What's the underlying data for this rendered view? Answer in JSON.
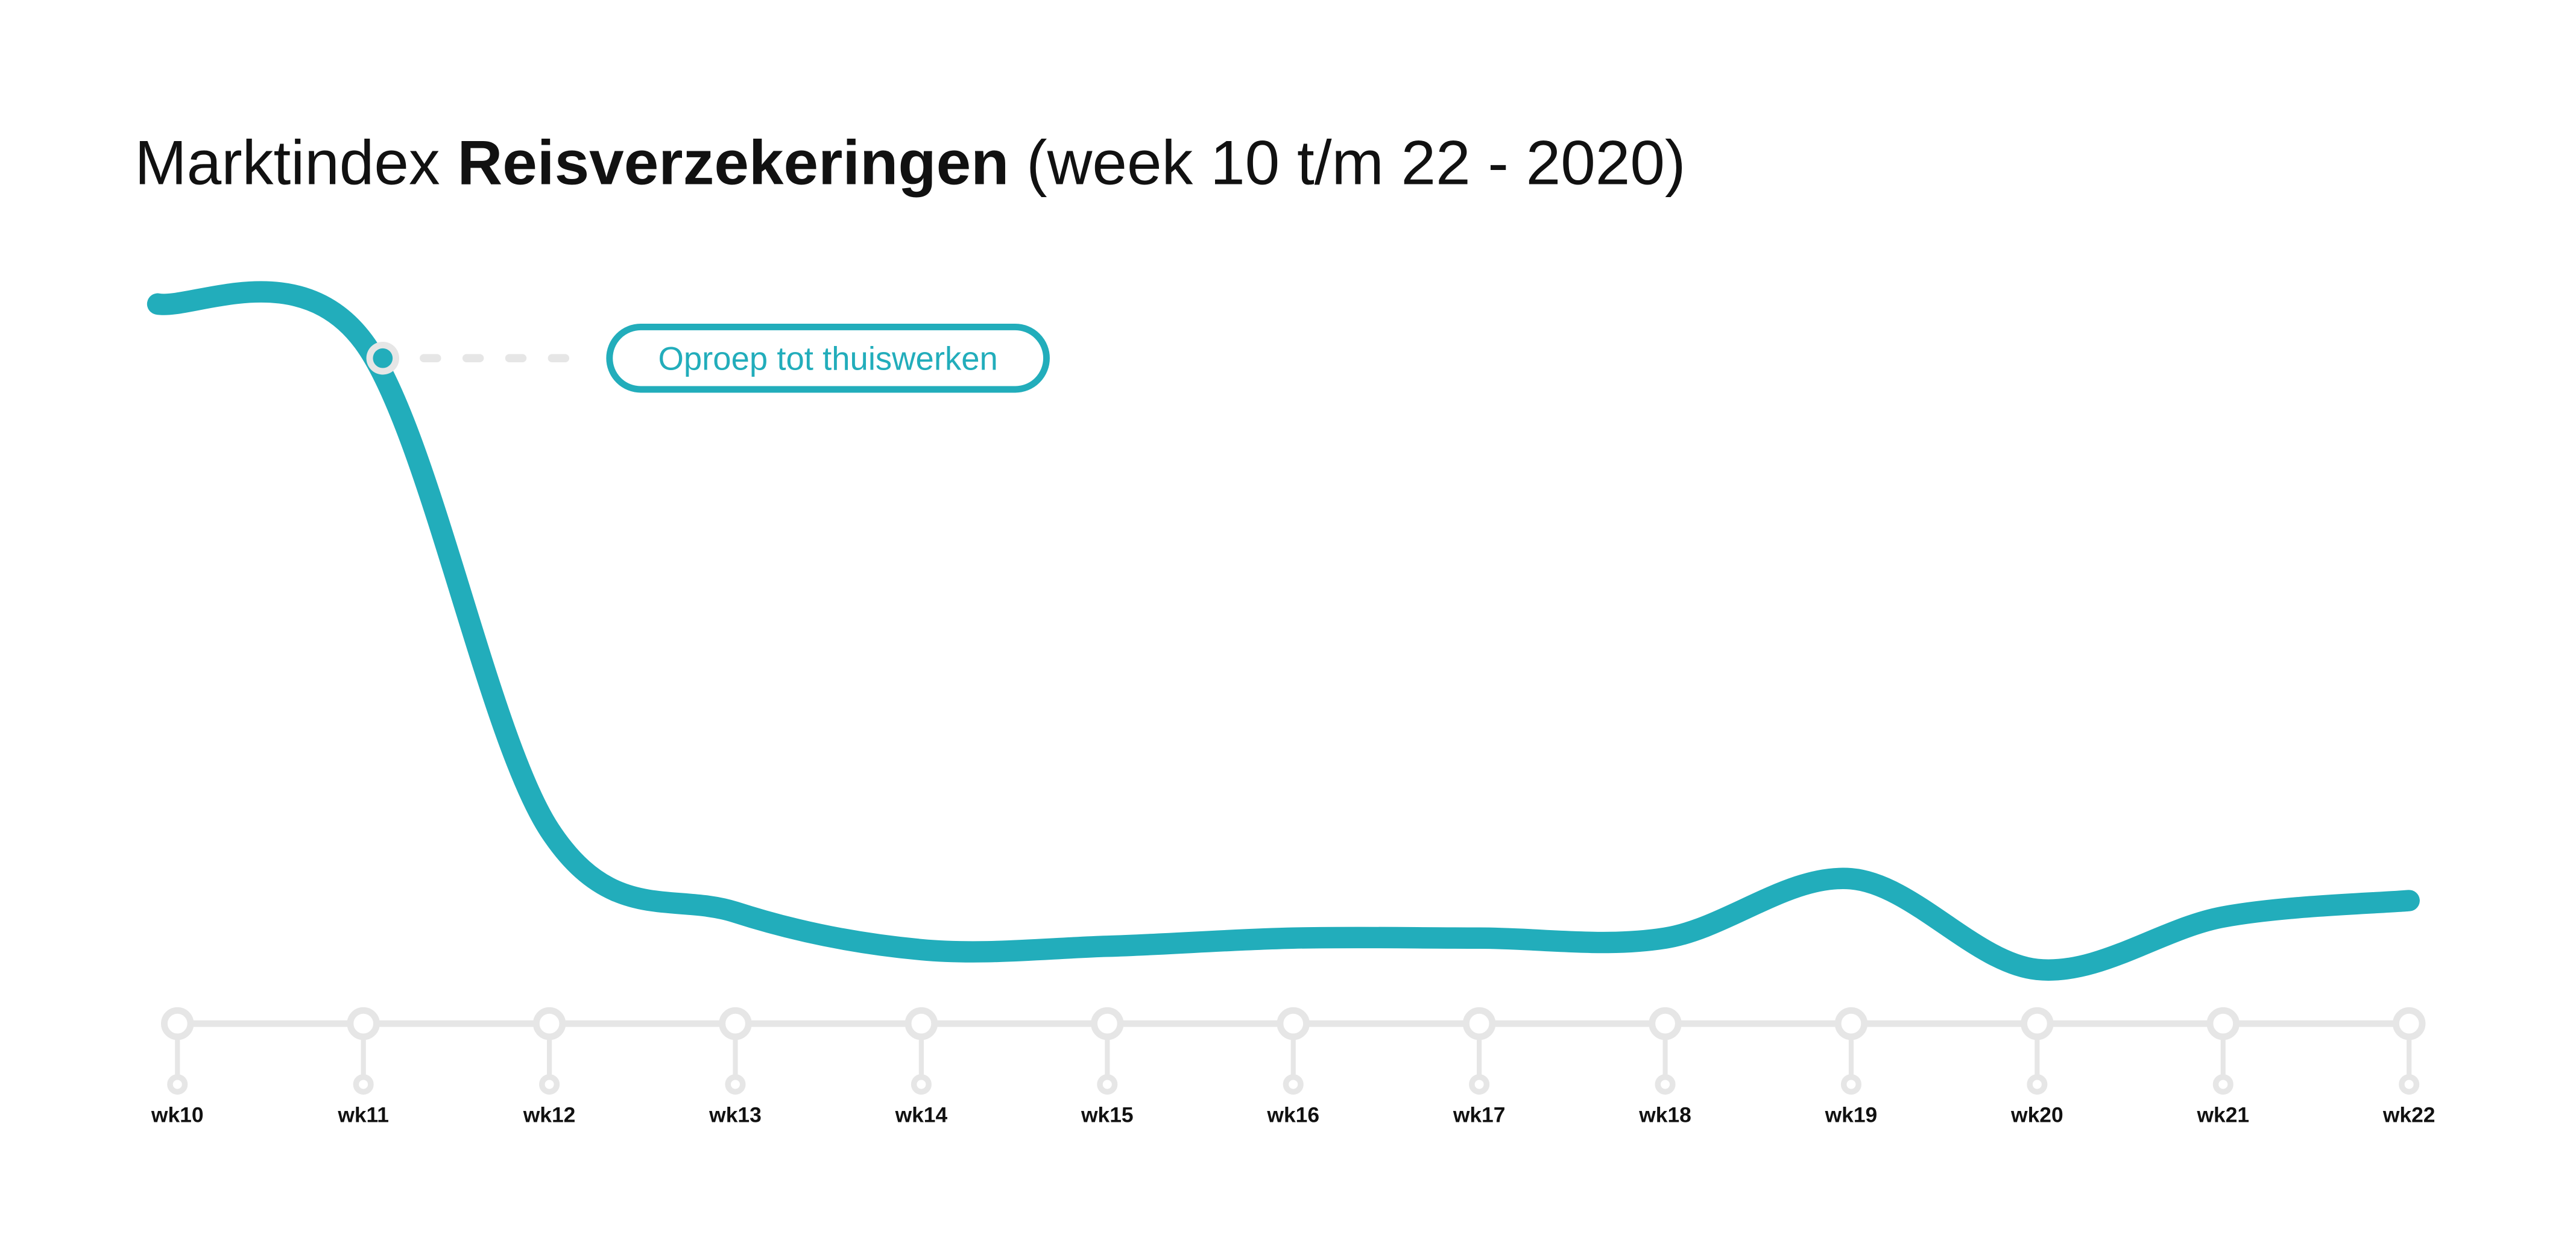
{
  "chart_data": {
    "type": "line",
    "title": {
      "prefix": "Marktindex ",
      "bold": "Reisverzekeringen",
      "suffix": " (week 10 t/m 22 - 2020)"
    },
    "xlabel": "",
    "ylabel": "",
    "categories": [
      "wk10",
      "wk11",
      "wk12",
      "wk13",
      "wk14",
      "wk15",
      "wk16",
      "wk17",
      "wk18",
      "wk19",
      "wk20",
      "wk21",
      "wk22"
    ],
    "series": [
      {
        "name": "Marktindex Reisverzekeringen",
        "values": [
          100,
          94.5,
          22.9,
          10.8,
          5.3,
          5.8,
          7.0,
          7.0,
          7.0,
          15.7,
          2.4,
          10.1,
          12.5
        ]
      }
    ],
    "ylim": [
      0,
      105
    ],
    "grid": false,
    "legend": "none",
    "annotation": {
      "label": "Oproep tot thuiswerken",
      "week_index": 1.1,
      "value": 92
    },
    "colors": {
      "line": "#22adbb",
      "axis": "#e6e6e6",
      "text": "#111111"
    }
  }
}
